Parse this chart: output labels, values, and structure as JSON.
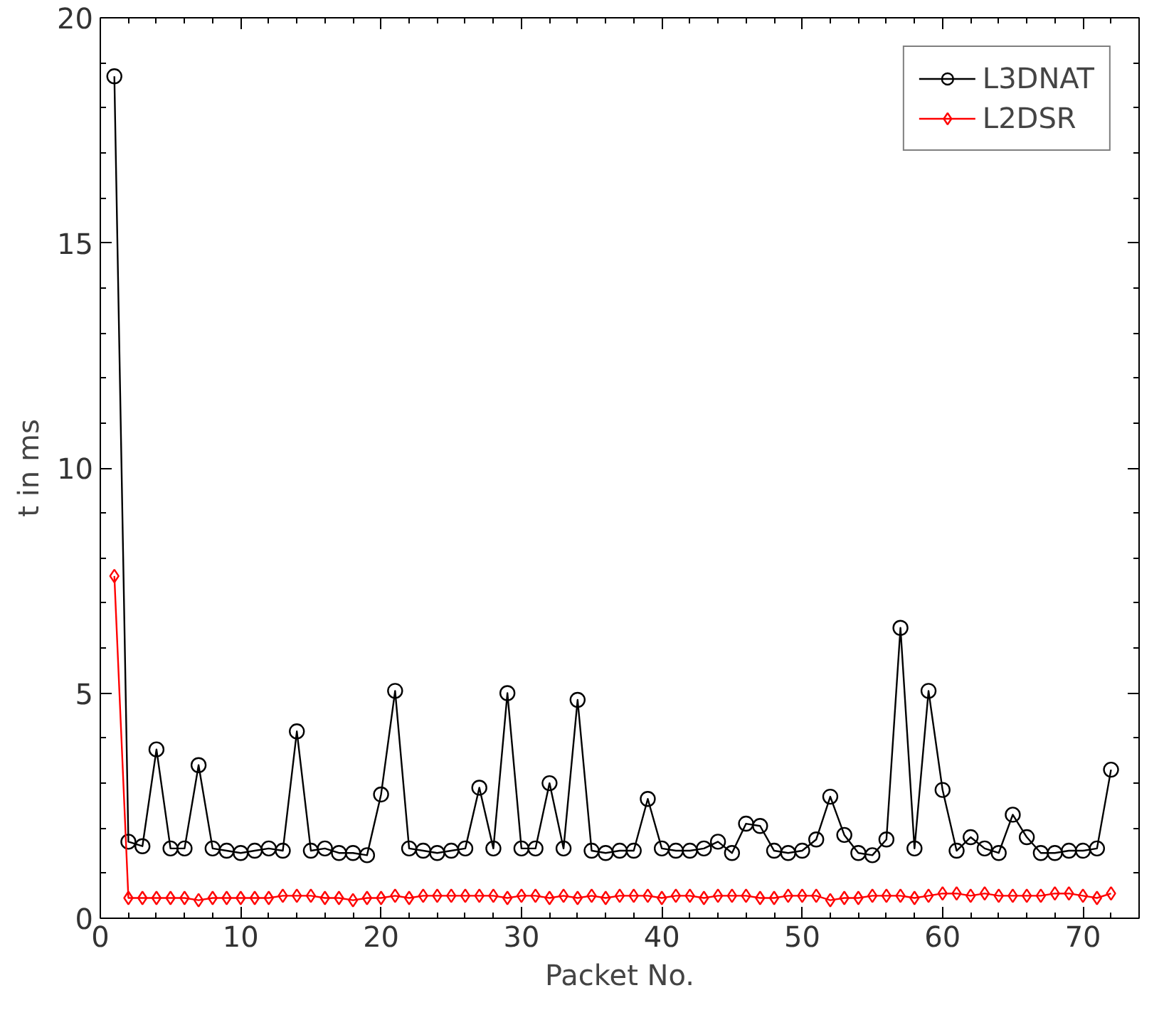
{
  "chart_data": {
    "type": "line",
    "xlabel": "Packet No.",
    "ylabel": "t in ms",
    "x": [
      1,
      2,
      3,
      4,
      5,
      6,
      7,
      8,
      9,
      10,
      11,
      12,
      13,
      14,
      15,
      16,
      17,
      18,
      19,
      20,
      21,
      22,
      23,
      24,
      25,
      26,
      27,
      28,
      29,
      30,
      31,
      32,
      33,
      34,
      35,
      36,
      37,
      38,
      39,
      40,
      41,
      42,
      43,
      44,
      45,
      46,
      47,
      48,
      49,
      50,
      51,
      52,
      53,
      54,
      55,
      56,
      57,
      58,
      59,
      60,
      61,
      62,
      63,
      64,
      65,
      66,
      67,
      68,
      69,
      70,
      71,
      72
    ],
    "series": [
      {
        "name": "L3DNAT",
        "color": "#000000",
        "marker": "circle",
        "values": [
          18.7,
          1.7,
          1.6,
          3.75,
          1.55,
          1.55,
          3.4,
          1.55,
          1.5,
          1.45,
          1.5,
          1.55,
          1.5,
          4.15,
          1.5,
          1.55,
          1.45,
          1.45,
          1.4,
          2.75,
          5.05,
          1.55,
          1.5,
          1.45,
          1.5,
          1.55,
          2.9,
          1.55,
          5.0,
          1.55,
          1.55,
          3.0,
          1.55,
          4.85,
          1.5,
          1.45,
          1.5,
          1.5,
          2.65,
          1.55,
          1.5,
          1.5,
          1.55,
          1.7,
          1.45,
          2.1,
          2.05,
          1.5,
          1.45,
          1.5,
          1.75,
          2.7,
          1.85,
          1.45,
          1.4,
          1.75,
          6.45,
          1.55,
          5.05,
          2.85,
          1.5,
          1.8,
          1.55,
          1.45,
          2.3,
          1.8,
          1.45,
          1.45,
          1.5,
          1.5,
          1.55,
          3.3
        ]
      },
      {
        "name": "L2DSR",
        "color": "#ff0000",
        "marker": "diamond",
        "values": [
          7.6,
          0.45,
          0.45,
          0.45,
          0.45,
          0.45,
          0.4,
          0.45,
          0.45,
          0.45,
          0.45,
          0.45,
          0.5,
          0.5,
          0.5,
          0.45,
          0.45,
          0.4,
          0.45,
          0.45,
          0.5,
          0.45,
          0.5,
          0.5,
          0.5,
          0.5,
          0.5,
          0.5,
          0.45,
          0.5,
          0.5,
          0.45,
          0.5,
          0.45,
          0.5,
          0.45,
          0.5,
          0.5,
          0.5,
          0.45,
          0.5,
          0.5,
          0.45,
          0.5,
          0.5,
          0.5,
          0.45,
          0.45,
          0.5,
          0.5,
          0.5,
          0.4,
          0.45,
          0.45,
          0.5,
          0.5,
          0.5,
          0.45,
          0.5,
          0.55,
          0.55,
          0.5,
          0.55,
          0.5,
          0.5,
          0.5,
          0.5,
          0.55,
          0.55,
          0.5,
          0.45,
          0.55
        ]
      }
    ],
    "xlim": [
      0,
      74
    ],
    "ylim": [
      0,
      20
    ],
    "xticks": [
      0,
      10,
      20,
      30,
      40,
      50,
      60,
      70
    ],
    "yticks": [
      0,
      5,
      10,
      15,
      20
    ],
    "grid": false,
    "legend": "top right",
    "line_style": "solid"
  }
}
